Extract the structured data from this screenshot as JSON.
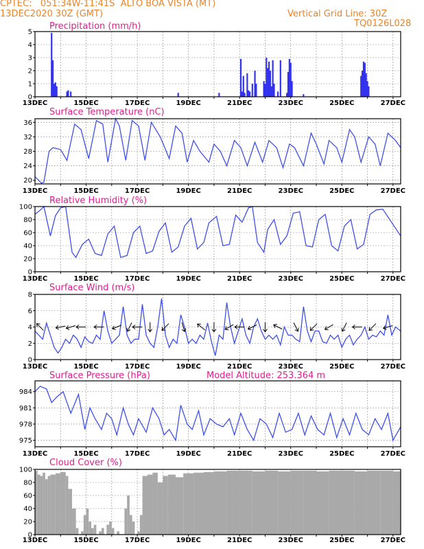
{
  "header": {
    "station": "CPTEC:   051:34W-11:41S  ALTO BOA VISTA (MT)",
    "run": "13DEC2020 30Z (GMT)",
    "grid": "Vertical Grid Line: 30Z",
    "code": "TQ0126L028"
  },
  "x_ticks": [
    "13DEC",
    "15DEC",
    "17DEC",
    "19DEC",
    "21DEC",
    "23DEC",
    "25DEC",
    "27DEC"
  ],
  "colors": {
    "line": "#3f4fe6",
    "bar": "#3333ee",
    "cloud": "#a9a9a9",
    "title": "#e01d8e",
    "header": "#e8842a"
  },
  "chart_data": [
    {
      "type": "bar",
      "title": "Precipitation (mm/h)",
      "ylim": [
        0,
        5
      ],
      "yticks": [
        0,
        1,
        2,
        3,
        4,
        5
      ],
      "x": [
        0.65,
        0.7,
        0.75,
        0.8,
        0.85,
        1.25,
        1.3,
        1.4,
        5.6,
        7.2,
        8.05,
        8.1,
        8.15,
        8.2,
        8.3,
        8.35,
        8.4,
        8.5,
        8.6,
        8.65,
        8.95,
        9.0,
        9.05,
        9.1,
        9.15,
        9.2,
        9.25,
        9.3,
        9.35,
        9.5,
        9.6,
        9.85,
        9.9,
        9.95,
        10.0,
        10.05,
        10.5,
        12.75,
        12.8,
        12.85,
        12.9,
        12.95,
        13.0,
        13.05
      ],
      "values": [
        4.9,
        2.8,
        1.0,
        1.1,
        0.8,
        0.4,
        0.5,
        0.4,
        0.3,
        0.3,
        2.9,
        0.4,
        1.6,
        0.3,
        1.8,
        0.5,
        0.4,
        1.0,
        2.0,
        1.0,
        1.2,
        1.0,
        3.0,
        2.2,
        2.7,
        2.0,
        0.8,
        2.8,
        1.0,
        0.4,
        2.8,
        0.3,
        1.9,
        2.9,
        2.6,
        1.2,
        0.2,
        1.6,
        2.0,
        2.7,
        2.6,
        1.8,
        1.2,
        0.8
      ]
    },
    {
      "type": "line",
      "title": "Surface Temperature (nC)",
      "ylim": [
        19,
        37
      ],
      "yticks": [
        20,
        24,
        28,
        32,
        36
      ],
      "x": [
        0.0,
        0.25,
        0.35,
        0.55,
        0.7,
        1.0,
        1.25,
        1.55,
        1.8,
        2.1,
        2.4,
        2.65,
        2.85,
        3.15,
        3.3,
        3.55,
        3.8,
        4.05,
        4.3,
        4.55,
        4.9,
        5.25,
        5.5,
        5.75,
        5.95,
        6.2,
        6.45,
        6.8,
        7.0,
        7.25,
        7.5,
        7.8,
        8.05,
        8.3,
        8.6,
        8.9,
        9.15,
        9.45,
        9.7,
        9.95,
        10.15,
        10.5,
        10.8,
        11.0,
        11.3,
        11.5,
        11.8,
        12.0,
        12.3,
        12.5,
        12.75,
        13.05,
        13.3,
        13.5,
        13.8,
        14.1,
        14.3
      ],
      "values": [
        21,
        19.2,
        19.5,
        28,
        29,
        28.5,
        25.5,
        35.5,
        34,
        26,
        36.5,
        35.5,
        25,
        37,
        35,
        25.5,
        36.5,
        35,
        25.5,
        36,
        32,
        26,
        35,
        33,
        25,
        31,
        28,
        25,
        30,
        28,
        24,
        31,
        29,
        24,
        30.5,
        25,
        31,
        29,
        23.5,
        30,
        29,
        24,
        33,
        30,
        24.5,
        31,
        29,
        25,
        34,
        32,
        25,
        32,
        30,
        24,
        33,
        31,
        29
      ]
    },
    {
      "type": "line",
      "title": "Relative Humidity (%)",
      "ylim": [
        0,
        100
      ],
      "yticks": [
        0,
        20,
        40,
        60,
        80,
        100
      ],
      "x": [
        0.0,
        0.25,
        0.35,
        0.6,
        0.8,
        1.0,
        1.2,
        1.45,
        1.6,
        1.85,
        2.1,
        2.35,
        2.6,
        2.85,
        3.1,
        3.35,
        3.6,
        3.85,
        4.1,
        4.35,
        4.6,
        4.85,
        5.1,
        5.35,
        5.6,
        5.85,
        6.1,
        6.35,
        6.6,
        6.8,
        7.1,
        7.35,
        7.6,
        7.85,
        8.1,
        8.35,
        8.5,
        8.7,
        8.95,
        9.1,
        9.35,
        9.6,
        9.85,
        10.1,
        10.35,
        10.6,
        10.85,
        11.1,
        11.35,
        11.6,
        11.85,
        12.1,
        12.35,
        12.6,
        12.85,
        13.1,
        13.35,
        13.6,
        14.3
      ],
      "values": [
        88,
        96,
        100,
        55,
        86,
        98,
        100,
        30,
        22,
        42,
        50,
        28,
        25,
        58,
        70,
        22,
        25,
        60,
        70,
        28,
        32,
        62,
        75,
        30,
        38,
        70,
        82,
        35,
        45,
        75,
        85,
        40,
        42,
        87,
        76,
        98,
        100,
        45,
        30,
        65,
        80,
        42,
        55,
        90,
        92,
        40,
        38,
        80,
        88,
        40,
        32,
        70,
        80,
        35,
        42,
        88,
        95,
        96,
        55
      ]
    },
    {
      "type": "line",
      "title": "Surface Wind (m/s)",
      "ylim": [
        0,
        8
      ],
      "yticks": [
        0,
        2,
        4,
        6,
        8
      ],
      "x": [
        0.0,
        0.15,
        0.3,
        0.45,
        0.6,
        0.75,
        0.9,
        1.05,
        1.2,
        1.35,
        1.5,
        1.65,
        1.8,
        1.95,
        2.1,
        2.25,
        2.4,
        2.55,
        2.7,
        2.85,
        3.0,
        3.15,
        3.3,
        3.45,
        3.6,
        3.75,
        3.9,
        4.05,
        4.2,
        4.35,
        4.5,
        4.65,
        4.8,
        4.95,
        5.1,
        5.25,
        5.4,
        5.55,
        5.7,
        5.85,
        6.0,
        6.15,
        6.3,
        6.45,
        6.6,
        6.75,
        6.9,
        7.05,
        7.2,
        7.35,
        7.5,
        7.65,
        7.8,
        7.95,
        8.1,
        8.25,
        8.4,
        8.55,
        8.7,
        8.85,
        9.0,
        9.15,
        9.3,
        9.45,
        9.6,
        9.75,
        9.9,
        10.05,
        10.2,
        10.35,
        10.5,
        10.65,
        10.8,
        10.95,
        11.1,
        11.25,
        11.4,
        11.55,
        11.7,
        11.85,
        12.0,
        12.15,
        12.3,
        12.45,
        12.6,
        12.75,
        12.9,
        13.05,
        13.2,
        13.35,
        13.5,
        13.65,
        13.8,
        13.95,
        14.1,
        14.3
      ],
      "values": [
        3.5,
        3,
        2.5,
        4.5,
        3,
        1.5,
        0.8,
        1.5,
        2.5,
        2,
        3,
        2.5,
        1.5,
        2.8,
        2.2,
        2,
        3,
        2.5,
        6,
        3.5,
        2,
        2.5,
        3,
        6.5,
        3,
        2,
        2.5,
        2.5,
        6.8,
        3,
        2,
        1.5,
        4,
        7.5,
        3,
        1.5,
        2.5,
        2,
        5.5,
        4,
        2,
        2.5,
        2,
        3,
        2.5,
        4.5,
        2.2,
        0.5,
        3,
        2.5,
        7,
        4,
        2,
        3.5,
        5,
        3,
        2,
        4,
        5,
        3.5,
        2.5,
        3,
        2.5,
        3,
        1.8,
        4,
        3,
        3,
        2.5,
        2.2,
        6.5,
        3.5,
        2.2,
        3.5,
        3.5,
        2.2,
        2,
        3,
        2.5,
        3,
        1.5,
        2.5,
        3,
        1.8,
        2.5,
        3,
        4,
        2.5,
        3,
        2.8,
        3.5,
        3,
        5.5,
        3,
        4,
        3.5
      ]
    },
    {
      "type": "line",
      "title": "Surface Pressure (hPa)",
      "subtitle": "Model Altitude: 253.364 m",
      "ylim": [
        973.8,
        986
      ],
      "yticks": [
        975,
        978,
        981,
        984
      ],
      "x": [
        0.0,
        0.2,
        0.45,
        0.65,
        0.85,
        1.1,
        1.4,
        1.7,
        1.95,
        2.15,
        2.35,
        2.6,
        2.8,
        3.0,
        3.2,
        3.45,
        3.65,
        3.85,
        4.05,
        4.35,
        4.6,
        4.85,
        5.05,
        5.25,
        5.5,
        5.7,
        5.95,
        6.15,
        6.4,
        6.6,
        6.85,
        7.1,
        7.35,
        7.6,
        7.8,
        8.05,
        8.3,
        8.55,
        8.8,
        9.05,
        9.3,
        9.55,
        9.8,
        10.05,
        10.3,
        10.55,
        10.8,
        11.05,
        11.3,
        11.55,
        11.8,
        12.05,
        12.3,
        12.55,
        12.8,
        13.05,
        13.3,
        13.55,
        13.8,
        14.0,
        14.3
      ],
      "values": [
        984,
        985,
        984.5,
        982,
        983,
        984,
        980,
        983.5,
        977,
        981,
        979,
        977,
        980,
        979,
        976,
        981,
        978,
        976,
        979,
        976.5,
        981,
        979,
        976,
        977,
        975,
        981.5,
        978,
        977,
        980.5,
        976,
        979,
        978,
        977.5,
        979,
        976,
        980,
        977,
        975,
        979,
        978,
        975.5,
        980,
        976.5,
        977,
        980,
        976,
        979.5,
        977,
        976,
        980,
        975.5,
        979,
        976,
        980,
        977,
        976,
        979,
        977,
        980,
        975,
        977.5
      ]
    },
    {
      "type": "area",
      "title": "Cloud Cover (%)",
      "ylim": [
        0,
        100
      ],
      "yticks": [
        0,
        20,
        40,
        60,
        80,
        100
      ],
      "x": [
        0.0,
        0.1,
        0.2,
        0.3,
        0.4,
        0.5,
        0.6,
        0.8,
        1.0,
        1.2,
        1.3,
        1.45,
        1.6,
        1.7,
        1.8,
        1.9,
        2.0,
        2.1,
        2.2,
        2.3,
        2.4,
        2.5,
        2.6,
        2.7,
        2.8,
        2.9,
        3.0,
        3.1,
        3.2,
        3.3,
        3.4,
        3.5,
        3.6,
        3.7,
        3.8,
        3.9,
        4.0,
        4.1,
        4.2,
        4.4,
        4.6,
        4.8,
        5.0,
        5.2,
        5.5,
        5.8,
        6.2,
        6.6,
        7.0,
        7.5,
        8.0,
        8.5,
        9.0,
        9.5,
        10.0,
        10.5,
        11.0,
        11.5,
        12.0,
        12.5,
        13.0,
        13.5,
        14.0,
        14.3
      ],
      "values": [
        98,
        92,
        90,
        95,
        85,
        90,
        92,
        94,
        96,
        90,
        70,
        40,
        10,
        0,
        5,
        30,
        40,
        20,
        10,
        15,
        0,
        5,
        10,
        0,
        15,
        20,
        10,
        0,
        5,
        0,
        0,
        40,
        60,
        30,
        20,
        0,
        5,
        30,
        90,
        92,
        95,
        80,
        90,
        92,
        88,
        94,
        95,
        96,
        97,
        98,
        98,
        97,
        98,
        97,
        98,
        98,
        97,
        98,
        98,
        97,
        98,
        98,
        97,
        96
      ]
    }
  ],
  "wind_arrows": [
    {
      "x": 0.2,
      "dx": -1,
      "dy": -1
    },
    {
      "x": 1.0,
      "dx": -1,
      "dy": 0.2
    },
    {
      "x": 1.4,
      "dx": -1,
      "dy": 0.3
    },
    {
      "x": 1.8,
      "dx": -1,
      "dy": 0
    },
    {
      "x": 2.5,
      "dx": -1,
      "dy": 0
    },
    {
      "x": 3.2,
      "dx": -1,
      "dy": 0.4
    },
    {
      "x": 3.7,
      "dx": -0.5,
      "dy": 1
    },
    {
      "x": 4.0,
      "dx": -1,
      "dy": 0
    },
    {
      "x": 4.5,
      "dx": 0,
      "dy": 1
    },
    {
      "x": 5.1,
      "dx": -0.8,
      "dy": 0.8
    },
    {
      "x": 5.8,
      "dx": 0.3,
      "dy": 1
    },
    {
      "x": 6.5,
      "dx": -1,
      "dy": -0.8
    },
    {
      "x": 7.0,
      "dx": 0,
      "dy": 1
    },
    {
      "x": 7.6,
      "dx": -1,
      "dy": 0.6
    },
    {
      "x": 8.0,
      "dx": -1,
      "dy": 0
    },
    {
      "x": 8.5,
      "dx": -1,
      "dy": 0.5
    },
    {
      "x": 9.0,
      "dx": 0,
      "dy": 1
    },
    {
      "x": 9.5,
      "dx": -1,
      "dy": -0.5
    },
    {
      "x": 10.2,
      "dx": 0.5,
      "dy": 1
    },
    {
      "x": 10.9,
      "dx": -0.7,
      "dy": 0.7
    },
    {
      "x": 11.5,
      "dx": -1,
      "dy": 0.6
    },
    {
      "x": 12.1,
      "dx": -0.5,
      "dy": 1
    },
    {
      "x": 12.6,
      "dx": -1,
      "dy": 0
    },
    {
      "x": 13.2,
      "dx": -0.8,
      "dy": 0.8
    },
    {
      "x": 13.8,
      "dx": -1,
      "dy": 0.3
    }
  ]
}
